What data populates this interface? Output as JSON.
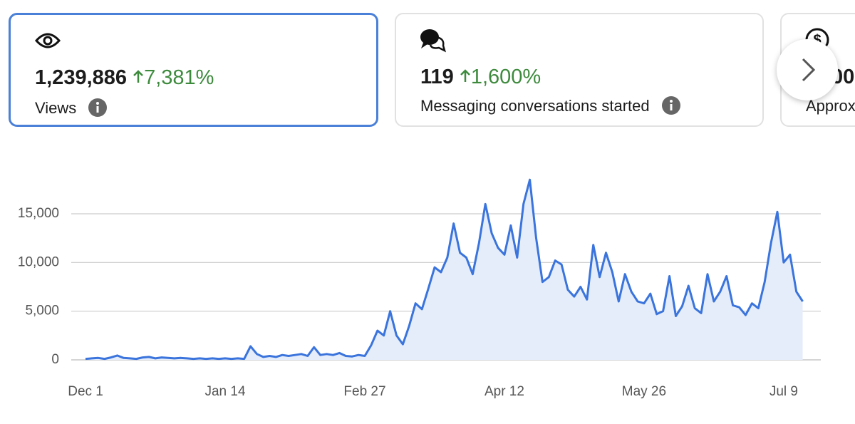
{
  "cards": [
    {
      "value": "1,239,886",
      "change": "7,381%",
      "label": "Views"
    },
    {
      "value": "119",
      "change": "1,600%",
      "label": "Messaging conversations started"
    },
    {
      "value": "00",
      "label": "Approx"
    }
  ],
  "chart_data": {
    "type": "line",
    "color": "#3a74dc",
    "fill": "#e5edfa",
    "grid": true,
    "x": [
      0,
      2,
      4,
      6,
      8,
      10,
      12,
      14,
      16,
      18,
      20,
      22,
      24,
      26,
      28,
      30,
      32,
      34,
      36,
      38,
      40,
      42,
      44,
      46,
      48,
      50,
      52,
      54,
      56,
      58,
      60,
      62,
      64,
      66,
      68,
      70,
      72,
      74,
      76,
      78,
      80,
      82,
      84,
      86,
      88,
      90,
      92,
      94,
      96,
      98,
      100,
      102,
      104,
      106,
      108,
      110,
      112,
      114,
      116,
      118,
      120,
      122,
      124,
      126,
      128,
      130,
      132,
      134,
      136,
      138,
      140,
      142,
      144,
      146,
      148,
      150,
      152,
      154,
      156,
      158,
      160,
      162,
      164,
      166,
      168,
      170,
      172,
      174,
      176,
      178,
      180,
      182,
      184,
      186,
      188,
      190,
      192,
      194,
      196,
      198,
      200,
      202,
      204,
      206,
      208,
      210,
      212,
      214,
      216,
      218,
      220,
      222,
      224,
      226
    ],
    "values": [
      100,
      150,
      200,
      100,
      250,
      450,
      200,
      150,
      100,
      250,
      300,
      150,
      250,
      200,
      150,
      200,
      150,
      100,
      150,
      100,
      150,
      100,
      150,
      100,
      150,
      100,
      1400,
      600,
      300,
      400,
      300,
      500,
      400,
      500,
      600,
      400,
      1300,
      500,
      600,
      500,
      700,
      400,
      350,
      500,
      400,
      1500,
      3000,
      2500,
      5000,
      2500,
      1600,
      3500,
      5800,
      5200,
      7300,
      9500,
      9000,
      10500,
      14000,
      11000,
      10500,
      8800,
      12000,
      16000,
      13000,
      11500,
      10800,
      13800,
      10500,
      16000,
      18500,
      12500,
      8000,
      8500,
      10200,
      9800,
      7200,
      6500,
      7500,
      6200,
      11800,
      8500,
      11000,
      9000,
      6000,
      8800,
      7000,
      6000,
      5800,
      6800,
      4700,
      5000,
      8600,
      4500,
      5500,
      7600,
      5300,
      4800,
      8800,
      6000,
      7000,
      8600,
      5600,
      5400,
      4600,
      5800,
      5300,
      8000,
      12000,
      15200,
      10000,
      10800,
      7000,
      6000
    ],
    "xlim": [
      -4.5,
      231.7
    ],
    "xticks": [
      {
        "value": 0,
        "label": "Dec 1"
      },
      {
        "value": 44,
        "label": "Jan 14"
      },
      {
        "value": 88,
        "label": "Feb 27"
      },
      {
        "value": 132,
        "label": "Apr 12"
      },
      {
        "value": 176,
        "label": "May 26"
      },
      {
        "value": 220,
        "label": "Jul 9"
      }
    ],
    "ylim": [
      0,
      15000
    ],
    "yticks": [
      0,
      {
        "value": 5000,
        "label": "5,000"
      },
      {
        "value": 10000,
        "label": "10,000"
      },
      {
        "value": 15000,
        "label": "15,000"
      }
    ]
  }
}
